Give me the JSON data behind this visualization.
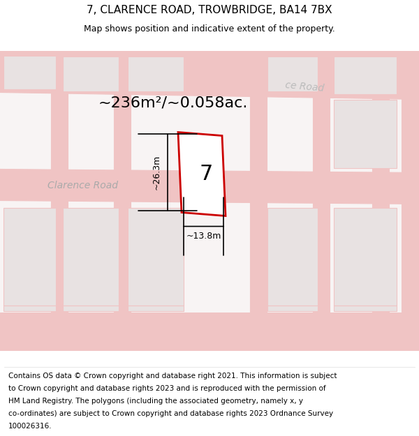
{
  "title": "7, CLARENCE ROAD, TROWBRIDGE, BA14 7BX",
  "subtitle": "Map shows position and indicative extent of the property.",
  "area_label": "~236m²/~0.058ac.",
  "plot_number": "7",
  "dim_height": "~26.3m",
  "dim_width": "~13.8m",
  "road_label_clarence": "Clarence Road",
  "road_label_top": "ce Road",
  "footer_lines": [
    "Contains OS data © Crown copyright and database right 2021. This information is subject",
    "to Crown copyright and database rights 2023 and is reproduced with the permission of",
    "HM Land Registry. The polygons (including the associated geometry, namely x, y",
    "co-ordinates) are subject to Crown copyright and database rights 2023 Ordnance Survey",
    "100026316."
  ],
  "bg_color": "#f8f4f4",
  "road_color": "#f0c4c4",
  "plot_edge_color": "#cc0000",
  "building_fill": "#e8e2e2",
  "building_edge": "#f0c4c4",
  "title_fontsize": 11,
  "subtitle_fontsize": 9,
  "footer_fontsize": 7.5,
  "area_fontsize": 16,
  "plot_num_fontsize": 22,
  "road_label_fontsize": 10,
  "dim_fontsize": 9
}
